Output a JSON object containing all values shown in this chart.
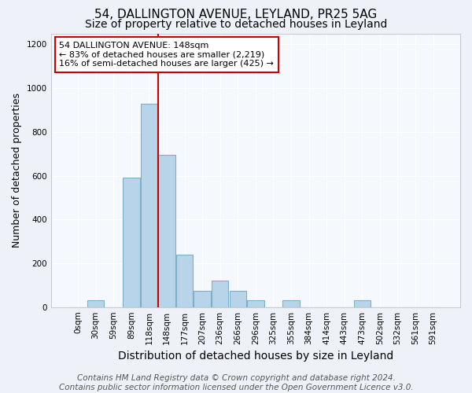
{
  "title1": "54, DALLINGTON AVENUE, LEYLAND, PR25 5AG",
  "title2": "Size of property relative to detached houses in Leyland",
  "xlabel": "Distribution of detached houses by size in Leyland",
  "ylabel": "Number of detached properties",
  "footer": "Contains HM Land Registry data © Crown copyright and database right 2024.\nContains public sector information licensed under the Open Government Licence v3.0.",
  "bin_labels": [
    "0sqm",
    "30sqm",
    "59sqm",
    "89sqm",
    "118sqm",
    "148sqm",
    "177sqm",
    "207sqm",
    "236sqm",
    "266sqm",
    "296sqm",
    "325sqm",
    "355sqm",
    "384sqm",
    "414sqm",
    "443sqm",
    "473sqm",
    "502sqm",
    "532sqm",
    "561sqm",
    "591sqm"
  ],
  "bar_heights": [
    0,
    30,
    0,
    590,
    930,
    695,
    240,
    75,
    120,
    75,
    30,
    0,
    30,
    0,
    0,
    0,
    30,
    0,
    0,
    0,
    0
  ],
  "bar_color": "#b8d4e8",
  "bar_edge_color": "#7ab0cc",
  "highlight_index": 5,
  "highlight_color": "#cc0000",
  "annotation_text": "54 DALLINGTON AVENUE: 148sqm\n← 83% of detached houses are smaller (2,219)\n16% of semi-detached houses are larger (425) →",
  "annotation_box_color": "#ffffff",
  "annotation_box_edge": "#cc0000",
  "ylim": [
    0,
    1250
  ],
  "yticks": [
    0,
    200,
    400,
    600,
    800,
    1000,
    1200
  ],
  "bg_color": "#eef2f8",
  "plot_bg_color": "#f5f8fc",
  "title1_fontsize": 11,
  "title2_fontsize": 10,
  "xlabel_fontsize": 10,
  "ylabel_fontsize": 9,
  "tick_fontsize": 7.5,
  "footer_fontsize": 7.5,
  "red_line_at_index": 4.5
}
